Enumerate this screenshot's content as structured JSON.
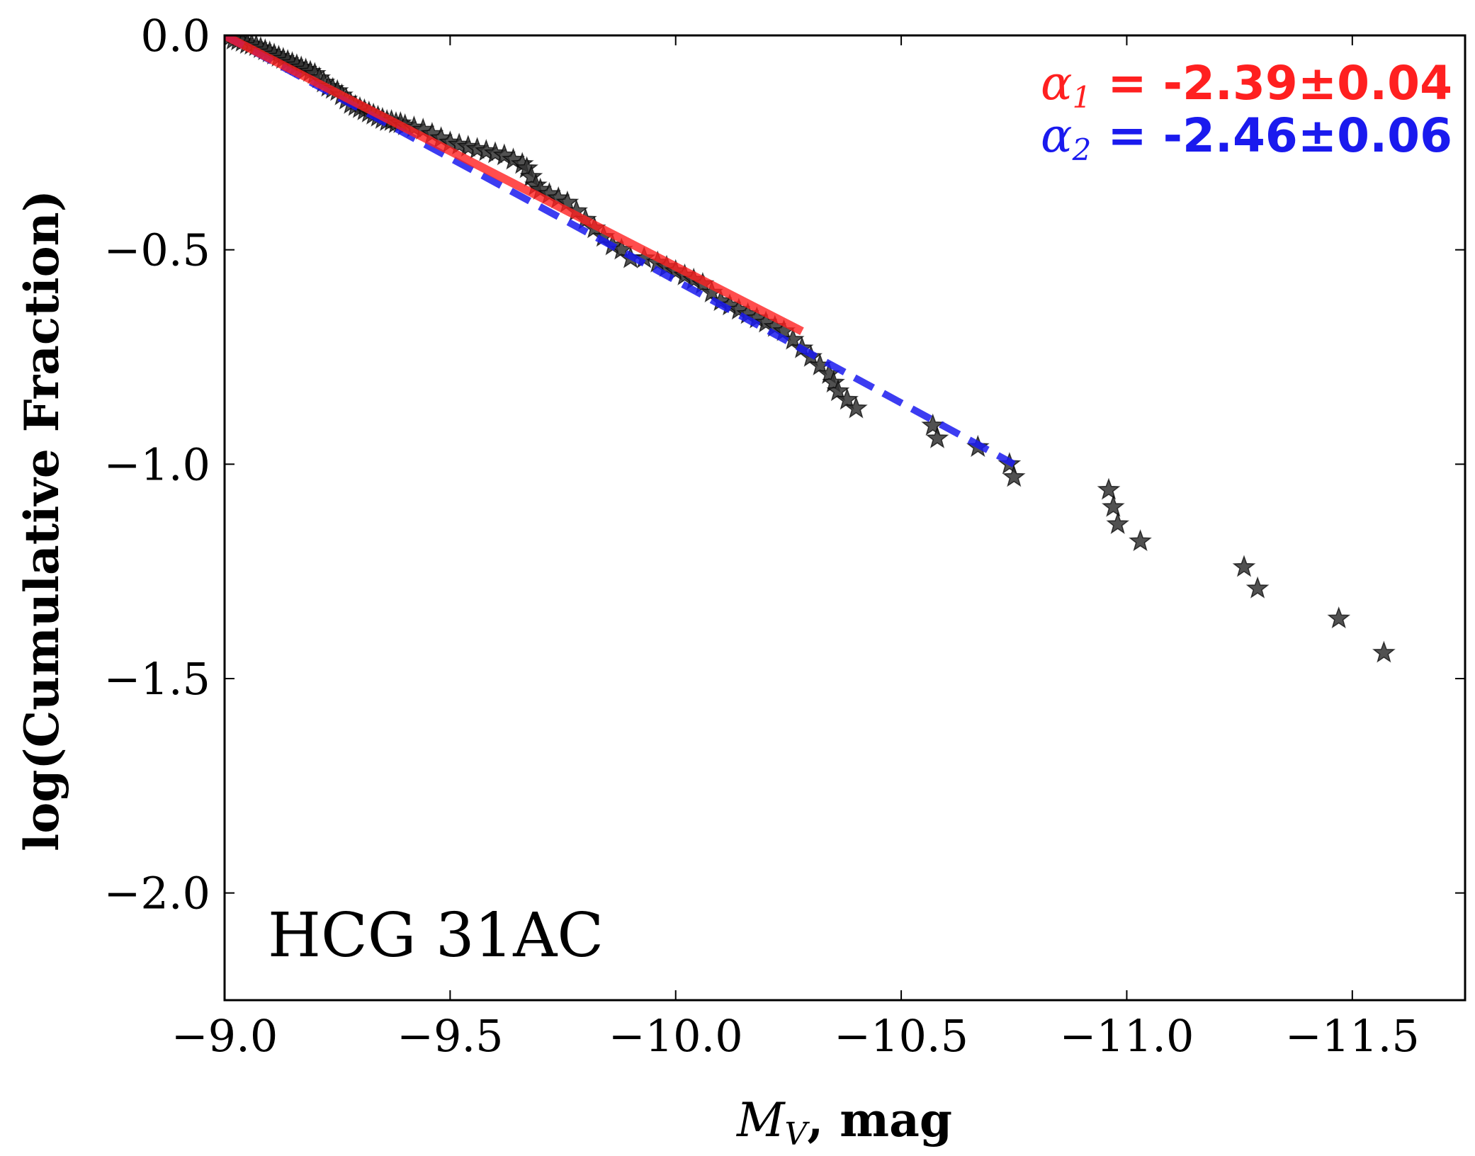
{
  "chart_data": {
    "type": "scatter",
    "title": "",
    "xlabel": {
      "symbol": "M",
      "subscript": "V",
      "unit": ", mag"
    },
    "ylabel": "log(Cumulative Fraction)",
    "xlim": [
      -9.0,
      -11.75
    ],
    "ylim": [
      -2.25,
      0.0
    ],
    "x_inverted": true,
    "x_ticks": [
      -9.0,
      -9.5,
      -10.0,
      -10.5,
      -11.0,
      -11.5
    ],
    "x_tick_labels": [
      "−9.0",
      "−9.5",
      "−10.0",
      "−10.5",
      "−11.0",
      "−11.5"
    ],
    "y_ticks": [
      0.0,
      -0.5,
      -1.0,
      -1.5,
      -2.0
    ],
    "y_tick_labels": [
      "0.0",
      "−0.5",
      "−1.0",
      "−1.5",
      "−2.0"
    ],
    "grid": false,
    "panel_label": "HCG 31AC",
    "marker": "star",
    "marker_color": "#333333",
    "points": [
      [
        -9.0,
        0.0
      ],
      [
        -9.01,
        -0.005
      ],
      [
        -9.02,
        -0.01
      ],
      [
        -9.03,
        -0.012
      ],
      [
        -9.04,
        -0.015
      ],
      [
        -9.05,
        -0.02
      ],
      [
        -9.06,
        -0.022
      ],
      [
        -9.07,
        -0.025
      ],
      [
        -9.08,
        -0.03
      ],
      [
        -9.09,
        -0.035
      ],
      [
        -9.1,
        -0.04
      ],
      [
        -9.11,
        -0.045
      ],
      [
        -9.12,
        -0.05
      ],
      [
        -9.13,
        -0.055
      ],
      [
        -9.14,
        -0.06
      ],
      [
        -9.15,
        -0.065
      ],
      [
        -9.16,
        -0.07
      ],
      [
        -9.17,
        -0.075
      ],
      [
        -9.18,
        -0.08
      ],
      [
        -9.19,
        -0.085
      ],
      [
        -9.2,
        -0.09
      ],
      [
        -9.21,
        -0.1
      ],
      [
        -9.22,
        -0.11
      ],
      [
        -9.23,
        -0.12
      ],
      [
        -9.24,
        -0.125
      ],
      [
        -9.25,
        -0.13
      ],
      [
        -9.26,
        -0.14
      ],
      [
        -9.27,
        -0.15
      ],
      [
        -9.28,
        -0.16
      ],
      [
        -9.29,
        -0.165
      ],
      [
        -9.3,
        -0.17
      ],
      [
        -9.31,
        -0.175
      ],
      [
        -9.32,
        -0.18
      ],
      [
        -9.33,
        -0.185
      ],
      [
        -9.34,
        -0.19
      ],
      [
        -9.35,
        -0.195
      ],
      [
        -9.36,
        -0.2
      ],
      [
        -9.37,
        -0.2
      ],
      [
        -9.38,
        -0.205
      ],
      [
        -9.39,
        -0.205
      ],
      [
        -9.4,
        -0.21
      ],
      [
        -9.42,
        -0.215
      ],
      [
        -9.44,
        -0.22
      ],
      [
        -9.46,
        -0.23
      ],
      [
        -9.48,
        -0.24
      ],
      [
        -9.5,
        -0.25
      ],
      [
        -9.52,
        -0.255
      ],
      [
        -9.54,
        -0.26
      ],
      [
        -9.56,
        -0.265
      ],
      [
        -9.58,
        -0.27
      ],
      [
        -9.6,
        -0.275
      ],
      [
        -9.62,
        -0.28
      ],
      [
        -9.64,
        -0.29
      ],
      [
        -9.66,
        -0.3
      ],
      [
        -9.67,
        -0.31
      ],
      [
        -9.68,
        -0.33
      ],
      [
        -9.69,
        -0.35
      ],
      [
        -9.7,
        -0.36
      ],
      [
        -9.72,
        -0.37
      ],
      [
        -9.74,
        -0.38
      ],
      [
        -9.76,
        -0.39
      ],
      [
        -9.78,
        -0.41
      ],
      [
        -9.8,
        -0.43
      ],
      [
        -9.82,
        -0.45
      ],
      [
        -9.84,
        -0.47
      ],
      [
        -9.86,
        -0.49
      ],
      [
        -9.88,
        -0.5
      ],
      [
        -9.9,
        -0.52
      ],
      [
        -9.93,
        -0.52
      ],
      [
        -9.96,
        -0.53
      ],
      [
        -9.98,
        -0.54
      ],
      [
        -10.0,
        -0.55
      ],
      [
        -10.02,
        -0.56
      ],
      [
        -10.04,
        -0.57
      ],
      [
        -10.06,
        -0.58
      ],
      [
        -10.08,
        -0.6
      ],
      [
        -10.1,
        -0.62
      ],
      [
        -10.12,
        -0.63
      ],
      [
        -10.14,
        -0.64
      ],
      [
        -10.16,
        -0.65
      ],
      [
        -10.18,
        -0.66
      ],
      [
        -10.2,
        -0.67
      ],
      [
        -10.22,
        -0.68
      ],
      [
        -10.24,
        -0.69
      ],
      [
        -10.26,
        -0.71
      ],
      [
        -10.28,
        -0.73
      ],
      [
        -10.3,
        -0.75
      ],
      [
        -10.32,
        -0.77
      ],
      [
        -10.34,
        -0.79
      ],
      [
        -10.35,
        -0.81
      ],
      [
        -10.36,
        -0.83
      ],
      [
        -10.38,
        -0.85
      ],
      [
        -10.4,
        -0.87
      ],
      [
        -10.57,
        -0.91
      ],
      [
        -10.58,
        -0.94
      ],
      [
        -10.67,
        -0.96
      ],
      [
        -10.74,
        -1.0
      ],
      [
        -10.75,
        -1.03
      ],
      [
        -10.96,
        -1.06
      ],
      [
        -10.97,
        -1.1
      ],
      [
        -10.98,
        -1.14
      ],
      [
        -11.03,
        -1.18
      ],
      [
        -11.26,
        -1.24
      ],
      [
        -11.29,
        -1.29
      ],
      [
        -11.47,
        -1.36
      ],
      [
        -11.57,
        -1.44
      ]
    ],
    "fits": [
      {
        "name": "α1",
        "label_symbol": "α",
        "label_subscript": "1",
        "label_value": " = -2.39±0.04",
        "color": "#ff2020",
        "style": "solid",
        "x": [
          -9.0,
          -10.28
        ],
        "y": [
          0.0,
          -0.69
        ]
      },
      {
        "name": "α2",
        "label_symbol": "α",
        "label_subscript": "2",
        "label_value": " = -2.46±0.06",
        "color": "#1a1aee",
        "style": "dashed",
        "x": [
          -9.0,
          -10.75
        ],
        "y": [
          0.0,
          -1.0
        ]
      }
    ]
  }
}
